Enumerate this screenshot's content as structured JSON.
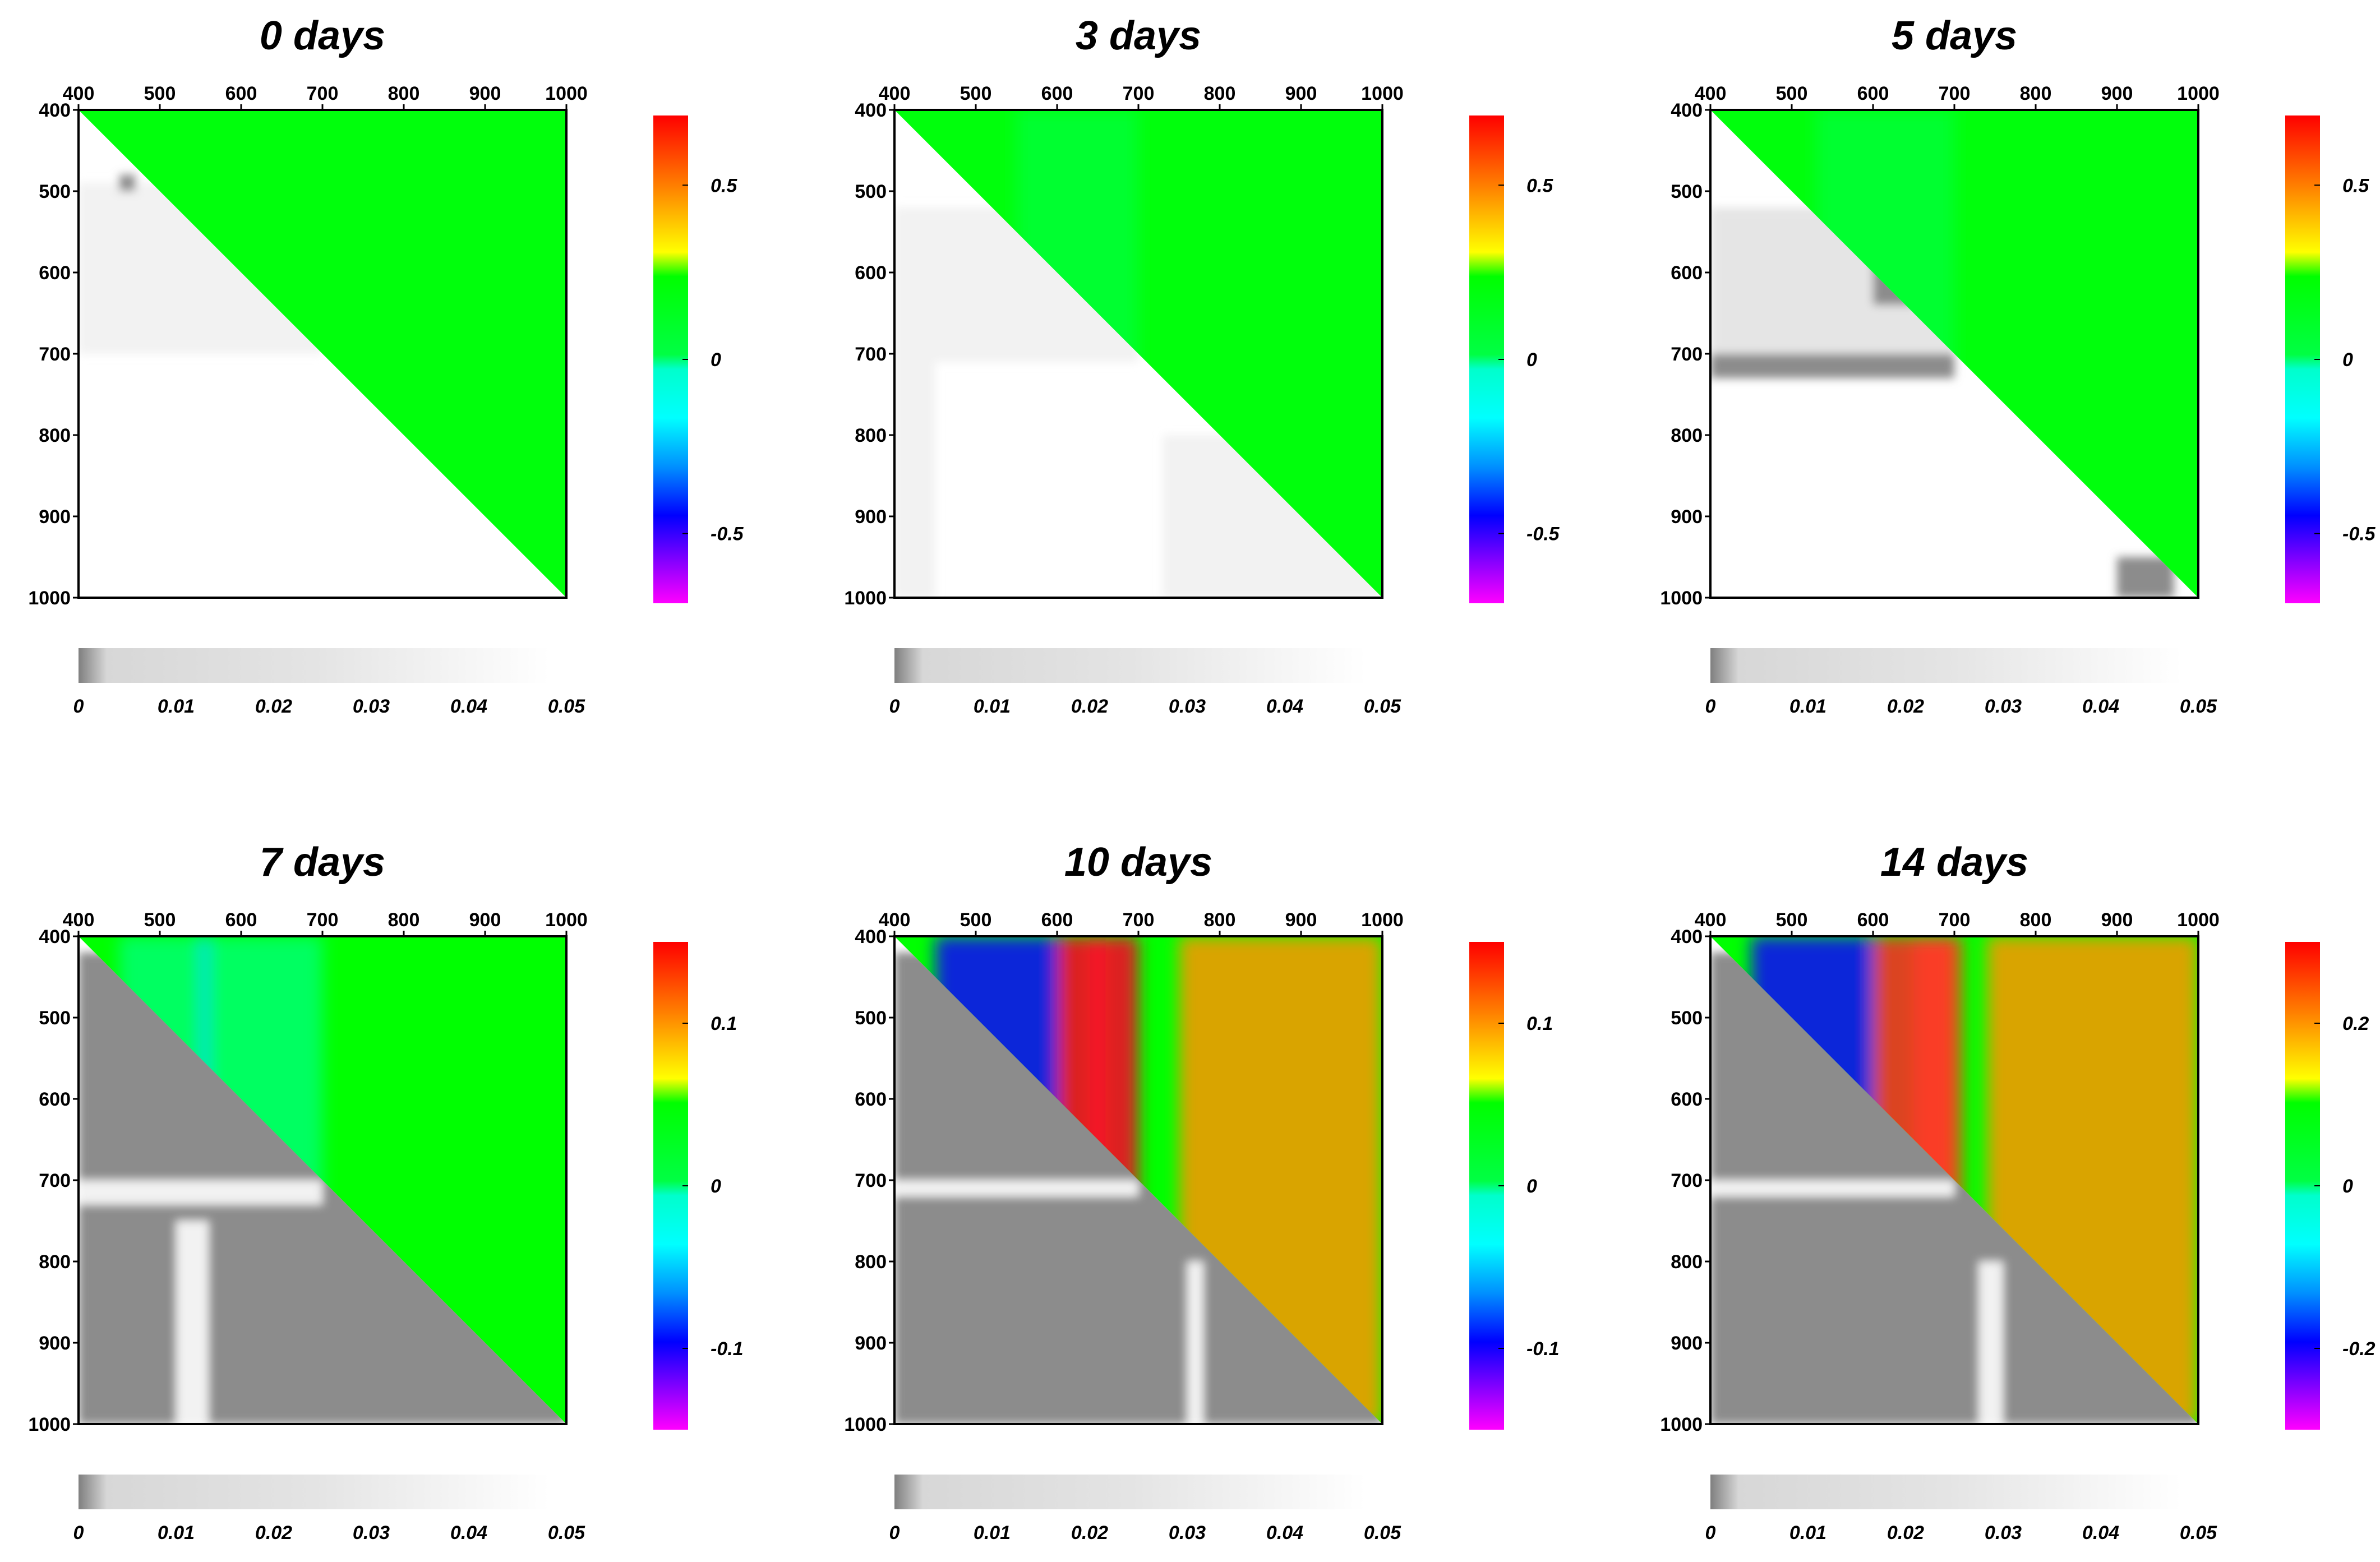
{
  "chart_data": [
    {
      "type": "heatmap",
      "title": "0 days",
      "x_ticks": [
        "400",
        "500",
        "600",
        "700",
        "800",
        "900",
        "1000"
      ],
      "y_ticks": [
        "400",
        "500",
        "600",
        "700",
        "800",
        "900",
        "1000"
      ],
      "xlim": [
        400,
        1000
      ],
      "ylim": [
        400,
        1000
      ],
      "synchronous_colorbar": {
        "ticks": [
          "0.5",
          "0",
          "-0.5"
        ],
        "tick_values": [
          0.5,
          0,
          -0.5
        ],
        "range": [
          -0.7,
          0.7
        ]
      },
      "significance_colorbar": {
        "ticks": [
          "0",
          "0.01",
          "0.02",
          "0.03",
          "0.04",
          "0.05"
        ],
        "range": [
          0,
          0.05
        ]
      },
      "upper_triangle": [
        {
          "wavelength": [
            400,
            1000
          ],
          "value": 0.2
        }
      ],
      "lower_triangle_gray": [
        {
          "x": [
            400,
            700
          ],
          "y": [
            490,
            700
          ],
          "p": 0.045
        },
        {
          "x": [
            450,
            470
          ],
          "y": [
            480,
            500
          ],
          "p": 0.005
        }
      ]
    },
    {
      "type": "heatmap",
      "title": "3 days",
      "x_ticks": [
        "400",
        "500",
        "600",
        "700",
        "800",
        "900",
        "1000"
      ],
      "y_ticks": [
        "400",
        "500",
        "600",
        "700",
        "800",
        "900",
        "1000"
      ],
      "xlim": [
        400,
        1000
      ],
      "ylim": [
        400,
        1000
      ],
      "synchronous_colorbar": {
        "ticks": [
          "0.5",
          "0",
          "-0.5"
        ],
        "tick_values": [
          0.5,
          0,
          -0.5
        ],
        "range": [
          -0.7,
          0.7
        ]
      },
      "significance_colorbar": {
        "ticks": [
          "0",
          "0.01",
          "0.02",
          "0.03",
          "0.04",
          "0.05"
        ],
        "range": [
          0,
          0.05
        ]
      },
      "upper_triangle": [
        {
          "wavelength": [
            400,
            1000
          ],
          "value": 0.2
        },
        {
          "wavelength": [
            550,
            700
          ],
          "value": 0.06
        }
      ],
      "lower_triangle_gray": [
        {
          "x": [
            400,
            700
          ],
          "y": [
            520,
            710
          ],
          "p": 0.045
        },
        {
          "x": [
            400,
            450
          ],
          "y": [
            700,
            1000
          ],
          "p": 0.045
        },
        {
          "x": [
            730,
            1000
          ],
          "y": [
            800,
            1000
          ],
          "p": 0.045
        }
      ]
    },
    {
      "type": "heatmap",
      "title": "5 days",
      "x_ticks": [
        "400",
        "500",
        "600",
        "700",
        "800",
        "900",
        "1000"
      ],
      "y_ticks": [
        "400",
        "500",
        "600",
        "700",
        "800",
        "900",
        "1000"
      ],
      "xlim": [
        400,
        1000
      ],
      "ylim": [
        400,
        1000
      ],
      "synchronous_colorbar": {
        "ticks": [
          "0.5",
          "0",
          "-0.5"
        ],
        "tick_values": [
          0.5,
          0,
          -0.5
        ],
        "range": [
          -0.7,
          0.7
        ]
      },
      "significance_colorbar": {
        "ticks": [
          "0",
          "0.01",
          "0.02",
          "0.03",
          "0.04",
          "0.05"
        ],
        "range": [
          0,
          0.05
        ]
      },
      "upper_triangle": [
        {
          "wavelength": [
            400,
            1000
          ],
          "value": 0.2
        },
        {
          "wavelength": [
            530,
            700
          ],
          "value": 0.06
        }
      ],
      "lower_triangle_gray": [
        {
          "x": [
            400,
            700
          ],
          "y": [
            520,
            720
          ],
          "p": 0.04
        },
        {
          "x": [
            400,
            700
          ],
          "y": [
            700,
            730
          ],
          "p": 0.005
        },
        {
          "x": [
            600,
            650
          ],
          "y": [
            580,
            640
          ],
          "p": 0.005
        },
        {
          "x": [
            900,
            970
          ],
          "y": [
            950,
            1000
          ],
          "p": 0.005
        }
      ]
    },
    {
      "type": "heatmap",
      "title": "7 days",
      "x_ticks": [
        "400",
        "500",
        "600",
        "700",
        "800",
        "900",
        "1000"
      ],
      "y_ticks": [
        "400",
        "500",
        "600",
        "700",
        "800",
        "900",
        "1000"
      ],
      "xlim": [
        400,
        1000
      ],
      "ylim": [
        400,
        1000
      ],
      "synchronous_colorbar": {
        "ticks": [
          "0.1",
          "0",
          "-0.1"
        ],
        "tick_values": [
          0.1,
          0,
          -0.1
        ],
        "range": [
          -0.15,
          0.15
        ]
      },
      "significance_colorbar": {
        "ticks": [
          "0",
          "0.01",
          "0.02",
          "0.03",
          "0.04",
          "0.05"
        ],
        "range": [
          0,
          0.05
        ]
      },
      "upper_triangle": [
        {
          "wavelength": [
            400,
            1000
          ],
          "value": 0.05
        },
        {
          "wavelength": [
            450,
            700
          ],
          "value": 0.0
        },
        {
          "wavelength": [
            550,
            560
          ],
          "value": -0.05
        }
      ],
      "lower_triangle_gray": [
        {
          "x": [
            400,
            1000
          ],
          "y": [
            420,
            1000
          ],
          "p": 0.005
        },
        {
          "x": [
            400,
            700
          ],
          "y": [
            700,
            730
          ],
          "p": 0.045
        },
        {
          "x": [
            520,
            560
          ],
          "y": [
            750,
            1000
          ],
          "p": 0.045
        }
      ]
    },
    {
      "type": "heatmap",
      "title": "10 days",
      "x_ticks": [
        "400",
        "500",
        "600",
        "700",
        "800",
        "900",
        "1000"
      ],
      "y_ticks": [
        "400",
        "500",
        "600",
        "700",
        "800",
        "900",
        "1000"
      ],
      "xlim": [
        400,
        1000
      ],
      "ylim": [
        400,
        1000
      ],
      "synchronous_colorbar": {
        "ticks": [
          "0.1",
          "0",
          "-0.1"
        ],
        "tick_values": [
          0.1,
          0,
          -0.1
        ],
        "range": [
          -0.15,
          0.15
        ]
      },
      "significance_colorbar": {
        "ticks": [
          "0",
          "0.01",
          "0.02",
          "0.03",
          "0.04",
          "0.05"
        ],
        "range": [
          0,
          0.05
        ]
      },
      "upper_triangle": [
        {
          "wavelength": [
            400,
            1000
          ],
          "value": 0.05
        },
        {
          "wavelength": [
            450,
            700
          ],
          "value": -0.1
        },
        {
          "wavelength": [
            640,
            660
          ],
          "value": -0.15
        },
        {
          "wavelength": [
            750,
            1000
          ],
          "value": 0.1
        },
        {
          "wavelength": [
            600,
            700
          ],
          "value": 0.14
        }
      ],
      "lower_triangle_gray": [
        {
          "x": [
            400,
            1000
          ],
          "y": [
            420,
            1000
          ],
          "p": 0.005
        },
        {
          "x": [
            400,
            700
          ],
          "y": [
            700,
            720
          ],
          "p": 0.045
        },
        {
          "x": [
            760,
            780
          ],
          "y": [
            800,
            1000
          ],
          "p": 0.045
        }
      ]
    },
    {
      "type": "heatmap",
      "title": "14 days",
      "x_ticks": [
        "400",
        "500",
        "600",
        "700",
        "800",
        "900",
        "1000"
      ],
      "y_ticks": [
        "400",
        "500",
        "600",
        "700",
        "800",
        "900",
        "1000"
      ],
      "xlim": [
        400,
        1000
      ],
      "ylim": [
        400,
        1000
      ],
      "synchronous_colorbar": {
        "ticks": [
          "0.2",
          "0",
          "-0.2"
        ],
        "tick_values": [
          0.2,
          0,
          -0.2
        ],
        "range": [
          -0.3,
          0.3
        ]
      },
      "significance_colorbar": {
        "ticks": [
          "0",
          "0.01",
          "0.02",
          "0.03",
          "0.04",
          "0.05"
        ],
        "range": [
          0,
          0.05
        ]
      },
      "upper_triangle": [
        {
          "wavelength": [
            400,
            1000
          ],
          "value": 0.1
        },
        {
          "wavelength": [
            450,
            700
          ],
          "value": -0.2
        },
        {
          "wavelength": [
            650,
            700
          ],
          "value": -0.3
        },
        {
          "wavelength": [
            740,
            1000
          ],
          "value": 0.2
        },
        {
          "wavelength": [
            600,
            710
          ],
          "value": 0.25
        }
      ],
      "lower_triangle_gray": [
        {
          "x": [
            400,
            1000
          ],
          "y": [
            420,
            1000
          ],
          "p": 0.005
        },
        {
          "x": [
            400,
            700
          ],
          "y": [
            700,
            720
          ],
          "p": 0.045
        },
        {
          "x": [
            730,
            760
          ],
          "y": [
            800,
            1000
          ],
          "p": 0.045
        }
      ]
    }
  ]
}
